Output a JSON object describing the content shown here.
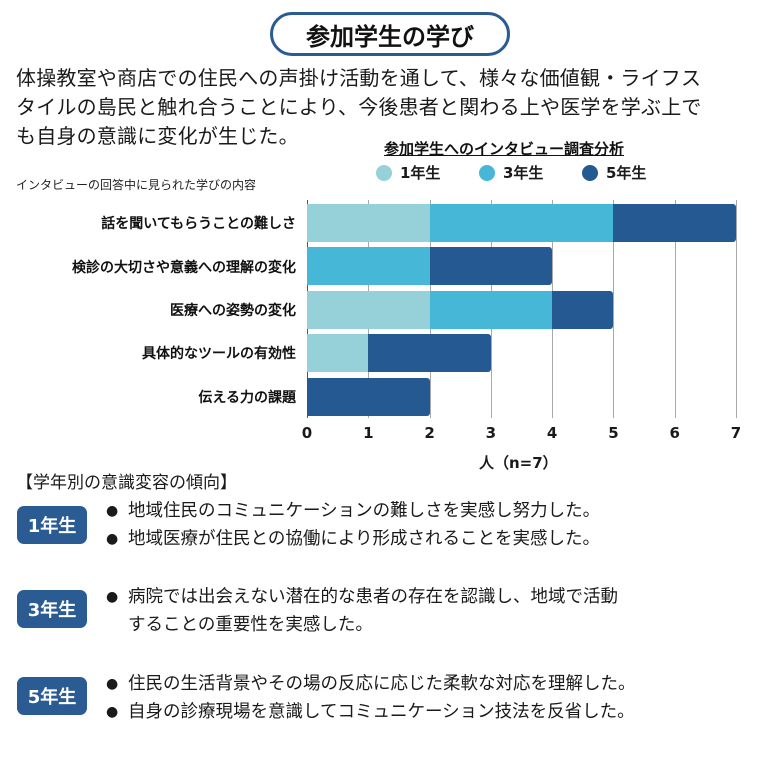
{
  "header": {
    "title": "参加学生の学び"
  },
  "intro": {
    "lines": [
      "体操教室や商店での住民への声掛け活動を通して、様々な価値観・ライフス",
      "タイルの島民と触れ合うことにより、今後患者と関わる上や医学を学ぶ上で",
      "も自身の意識に変化が生じた。"
    ]
  },
  "chart": {
    "title": "参加学生へのインタビュー調査分析",
    "subtitle": "インタビューの回答中に見られた学びの内容",
    "legend": [
      {
        "label": "1年生",
        "color": "#96d1d9"
      },
      {
        "label": "3年生",
        "color": "#46b7d6"
      },
      {
        "label": "5年生",
        "color": "#245a91"
      }
    ],
    "ticks": [
      "0",
      "1",
      "2",
      "3",
      "4",
      "5",
      "6",
      "7"
    ],
    "xlabel": "人（n=7）"
  },
  "chart_data": {
    "type": "bar",
    "orientation": "horizontal",
    "stacked": true,
    "title": "参加学生へのインタビュー調査分析",
    "subtitle": "インタビューの回答中に見られた学びの内容",
    "categories": [
      "話を聞いてもらうことの難しさ",
      "検診の大切さや意義への理解の変化",
      "医療への姿勢の変化",
      "具体的なツールの有効性",
      "伝える力の課題"
    ],
    "series": [
      {
        "name": "1年生",
        "color": "#96d1d9",
        "values": [
          2,
          0,
          2,
          1,
          0
        ]
      },
      {
        "name": "3年生",
        "color": "#46b7d6",
        "values": [
          3,
          2,
          2,
          0,
          0
        ]
      },
      {
        "name": "5年生",
        "color": "#245a91",
        "values": [
          2,
          2,
          1,
          2,
          2
        ]
      }
    ],
    "totals": [
      7,
      4,
      5,
      3,
      2
    ],
    "xlabel": "人（n=7）",
    "ylabel": "",
    "xlim": [
      0,
      7
    ],
    "xticks": [
      0,
      1,
      2,
      3,
      4,
      5,
      6,
      7
    ],
    "grid": "vertical",
    "legend_position": "top"
  },
  "trends": {
    "title": "【学年別の意識変容の傾向】",
    "groups": [
      {
        "badge": "1年生",
        "items": [
          "地域住民のコミュニケーションの難しさを実感し努力した。",
          "地域医療が住民との協働により形成されることを実感した。"
        ]
      },
      {
        "badge": "3年生",
        "items": [
          "病院では出会えない潜在的な患者の存在を認識し、地域で活動",
          "することの重要性を実感した。"
        ]
      },
      {
        "badge": "5年生",
        "items": [
          "住民の生活背景やその場の反応に応じた柔軟な対応を理解した。",
          "自身の診療現場を意識してコミュニケーション技法を反省した。"
        ]
      }
    ]
  }
}
